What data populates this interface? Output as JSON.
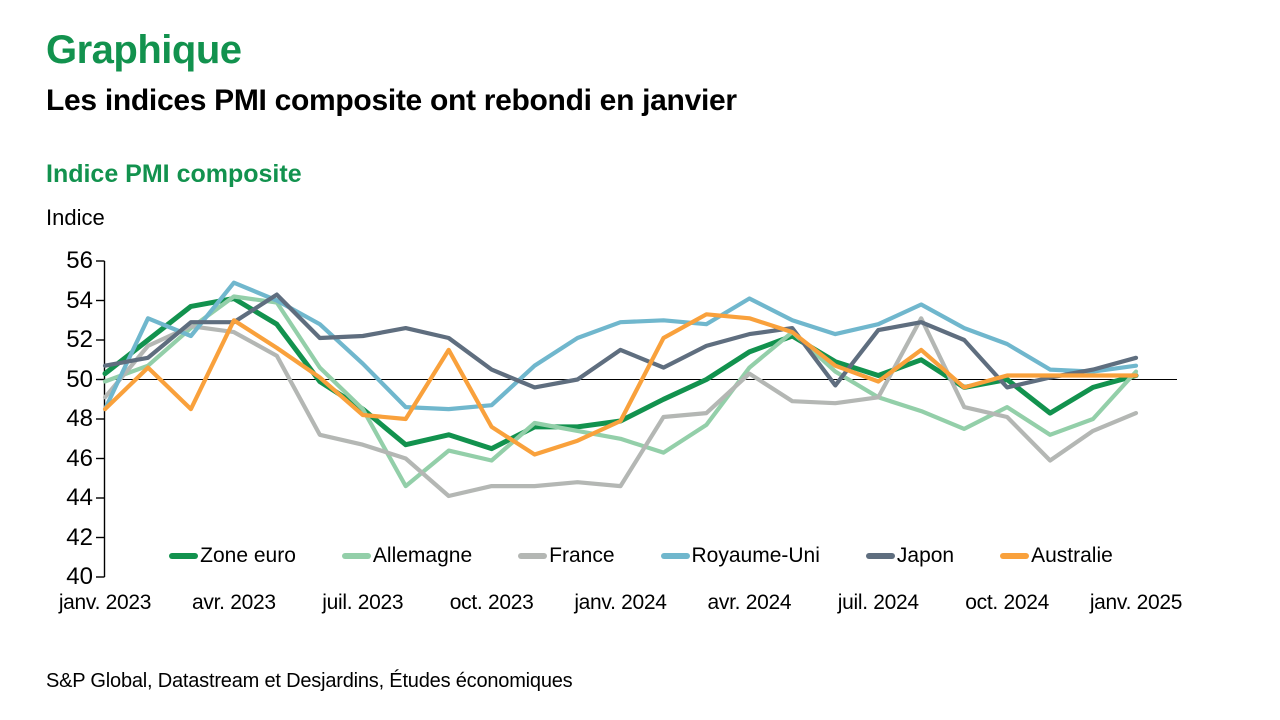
{
  "page": {
    "kicker": "Graphique",
    "title": "Les indices PMI composite ont rebondi en janvier",
    "chart_title": "Indice PMI composite",
    "y_axis_title": "Indice",
    "source": "S&P Global, Datastream et Desjardins, Études économiques",
    "accent_green": "#12924e",
    "text_color": "#000000"
  },
  "chart_data": {
    "type": "line",
    "title": "Indice PMI composite",
    "ylabel": "Indice",
    "xlabel": "",
    "ylim": [
      40,
      56
    ],
    "y_ticks": [
      56,
      54,
      52,
      50,
      48,
      46,
      44,
      42,
      40
    ],
    "reference_line": 50,
    "grid": false,
    "legend_position": "bottom-inside",
    "x_months_span": 25,
    "x_tick_labels": [
      "janv. 2023",
      "avr. 2023",
      "juil. 2023",
      "oct. 2023",
      "janv. 2024",
      "avr. 2024",
      "juil. 2024",
      "oct. 2024",
      "janv. 2025"
    ],
    "x_tick_month_indices": [
      0,
      3,
      6,
      9,
      12,
      15,
      18,
      21,
      24
    ],
    "series": [
      {
        "name": "Zone euro",
        "color": "#12924e",
        "values": [
          50.3,
          52.0,
          53.7,
          54.1,
          52.8,
          49.9,
          48.5,
          46.7,
          47.2,
          46.5,
          47.6,
          47.6,
          47.9,
          49.0,
          50.0,
          51.4,
          52.2,
          50.9,
          50.2,
          51.0,
          49.6,
          50.0,
          48.3,
          49.6,
          50.2
        ]
      },
      {
        "name": "Allemagne",
        "color": "#93cfa9",
        "values": [
          49.9,
          50.7,
          52.6,
          54.2,
          53.9,
          50.6,
          48.5,
          44.6,
          46.4,
          45.9,
          47.8,
          47.4,
          47.0,
          46.3,
          47.7,
          50.6,
          52.4,
          50.4,
          49.1,
          48.4,
          47.5,
          48.6,
          47.2,
          48.0,
          50.4
        ]
      },
      {
        "name": "France",
        "color": "#b4b7b4",
        "values": [
          49.1,
          51.7,
          52.7,
          52.4,
          51.2,
          47.2,
          46.7,
          46.0,
          44.1,
          44.6,
          44.6,
          44.8,
          44.6,
          48.1,
          48.3,
          50.3,
          48.9,
          48.8,
          49.1,
          53.1,
          48.6,
          48.1,
          45.9,
          47.4,
          48.3
        ]
      },
      {
        "name": "Royaume-Uni",
        "color": "#70b7cd",
        "values": [
          48.5,
          53.1,
          52.2,
          54.9,
          54.0,
          52.8,
          50.8,
          48.6,
          48.5,
          48.7,
          50.7,
          52.1,
          52.9,
          53.0,
          52.8,
          54.1,
          53.0,
          52.3,
          52.8,
          53.8,
          52.6,
          51.8,
          50.5,
          50.4,
          50.7
        ]
      },
      {
        "name": "Japon",
        "color": "#5f6e7f",
        "values": [
          50.7,
          51.1,
          52.9,
          52.9,
          54.3,
          52.1,
          52.2,
          52.6,
          52.1,
          50.5,
          49.6,
          50.0,
          51.5,
          50.6,
          51.7,
          52.3,
          52.6,
          49.7,
          52.5,
          52.9,
          52.0,
          49.6,
          50.1,
          50.5,
          51.1
        ]
      },
      {
        "name": "Australie",
        "color": "#f9a13c",
        "values": [
          48.5,
          50.6,
          48.5,
          53.0,
          51.6,
          50.1,
          48.2,
          48.0,
          51.5,
          47.6,
          46.2,
          46.9,
          47.9,
          52.1,
          53.3,
          53.1,
          52.4,
          50.7,
          49.9,
          51.5,
          49.6,
          50.2,
          50.2,
          50.2,
          50.2
        ]
      }
    ]
  }
}
